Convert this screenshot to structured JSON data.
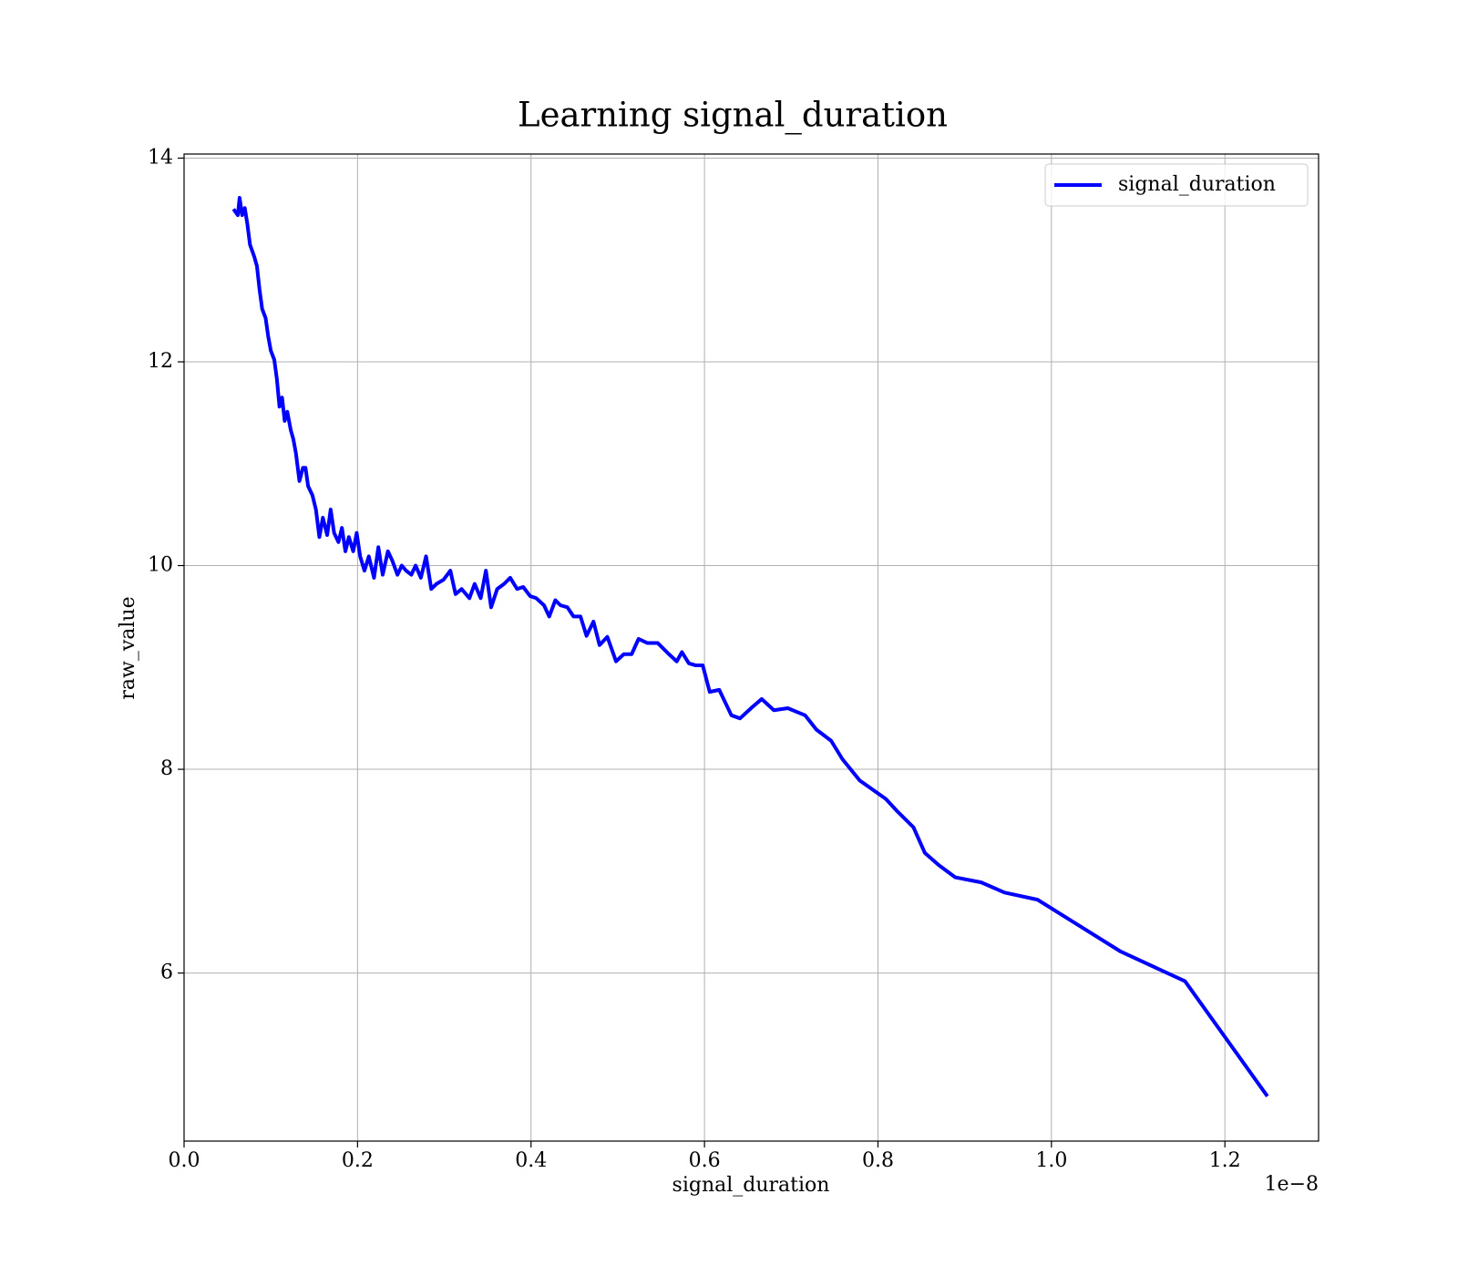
{
  "chart_data": {
    "type": "line",
    "title": "Learning signal_duration",
    "xlabel": "signal_duration",
    "ylabel": "raw_value",
    "x_offset_label": "1e−8",
    "x": [
      0.057,
      0.062,
      0.064,
      0.067,
      0.07,
      0.073,
      0.076,
      0.081,
      0.084,
      0.087,
      0.09,
      0.094,
      0.097,
      0.1,
      0.104,
      0.107,
      0.11,
      0.113,
      0.116,
      0.119,
      0.123,
      0.126,
      0.129,
      0.133,
      0.137,
      0.14,
      0.143,
      0.148,
      0.152,
      0.156,
      0.16,
      0.165,
      0.169,
      0.173,
      0.178,
      0.182,
      0.186,
      0.19,
      0.195,
      0.199,
      0.203,
      0.208,
      0.213,
      0.219,
      0.224,
      0.229,
      0.235,
      0.24,
      0.246,
      0.251,
      0.256,
      0.262,
      0.267,
      0.273,
      0.279,
      0.285,
      0.291,
      0.299,
      0.307,
      0.313,
      0.32,
      0.329,
      0.335,
      0.342,
      0.348,
      0.354,
      0.361,
      0.369,
      0.376,
      0.384,
      0.391,
      0.399,
      0.406,
      0.415,
      0.421,
      0.428,
      0.434,
      0.442,
      0.449,
      0.457,
      0.464,
      0.472,
      0.479,
      0.488,
      0.498,
      0.507,
      0.516,
      0.524,
      0.534,
      0.546,
      0.559,
      0.568,
      0.574,
      0.582,
      0.59,
      0.598,
      0.606,
      0.617,
      0.631,
      0.641,
      0.655,
      0.666,
      0.68,
      0.696,
      0.716,
      0.729,
      0.746,
      0.759,
      0.779,
      0.809,
      0.822,
      0.841,
      0.854,
      0.87,
      0.889,
      0.919,
      0.946,
      0.984,
      1.08,
      1.154,
      1.249
    ],
    "series": [
      {
        "name": "signal_duration",
        "color": "#0000ff",
        "values": [
          13.5,
          13.44,
          13.61,
          13.44,
          13.51,
          13.35,
          13.15,
          13.03,
          12.94,
          12.71,
          12.52,
          12.43,
          12.25,
          12.11,
          12.02,
          11.83,
          11.56,
          11.65,
          11.42,
          11.51,
          11.33,
          11.24,
          11.1,
          10.83,
          10.96,
          10.96,
          10.78,
          10.69,
          10.55,
          10.28,
          10.47,
          10.3,
          10.55,
          10.32,
          10.23,
          10.37,
          10.14,
          10.28,
          10.14,
          10.32,
          10.09,
          9.95,
          10.09,
          9.88,
          10.18,
          9.91,
          10.14,
          10.05,
          9.91,
          10.0,
          9.95,
          9.91,
          10.0,
          9.88,
          10.09,
          9.77,
          9.82,
          9.86,
          9.95,
          9.72,
          9.77,
          9.68,
          9.82,
          9.68,
          9.95,
          9.59,
          9.77,
          9.82,
          9.88,
          9.77,
          9.79,
          9.7,
          9.68,
          9.61,
          9.5,
          9.66,
          9.61,
          9.59,
          9.5,
          9.5,
          9.31,
          9.45,
          9.22,
          9.3,
          9.06,
          9.13,
          9.13,
          9.28,
          9.24,
          9.24,
          9.13,
          9.06,
          9.15,
          9.04,
          9.02,
          9.02,
          8.76,
          8.78,
          8.53,
          8.5,
          8.61,
          8.69,
          8.58,
          8.6,
          8.53,
          8.39,
          8.28,
          8.1,
          7.89,
          7.71,
          7.59,
          7.43,
          7.18,
          7.06,
          6.94,
          6.89,
          6.79,
          6.72,
          6.21,
          5.92,
          4.79
        ]
      }
    ],
    "xlim": [
      0,
      1.308
    ],
    "ylim": [
      4.35,
      14.04
    ],
    "xticks": [
      {
        "value": 0,
        "label": "0.0"
      },
      0.2,
      0.4,
      0.6,
      0.8,
      {
        "value": 1,
        "label": "1.0"
      },
      1.2
    ],
    "yticks": [
      6,
      8,
      10,
      12,
      14
    ],
    "grid": true,
    "legend": "upper right"
  }
}
